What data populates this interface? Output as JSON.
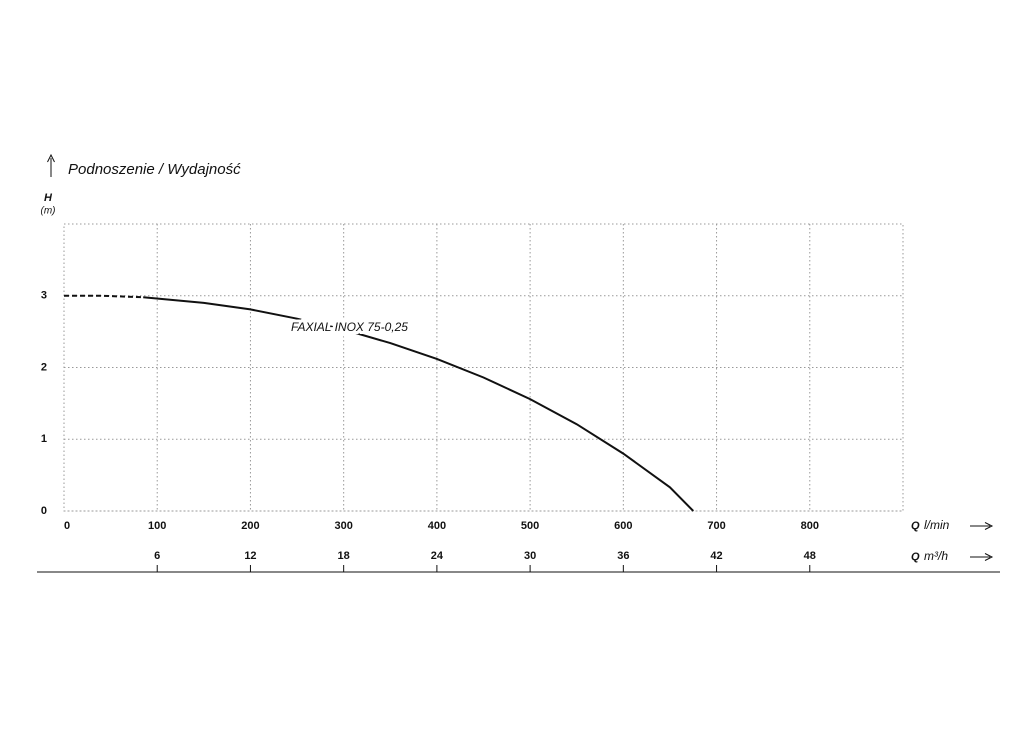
{
  "chart_data": {
    "type": "line",
    "title": "Podnoszenie / Wydajność",
    "y_label": "H",
    "y_unit": "(m)",
    "x_label": {
      "symbol": "Q",
      "unit": "l/min"
    },
    "x2_label": {
      "symbol": "Q",
      "unit": "m³/h"
    },
    "annotation": "FAXIAL INOX 75-0,25",
    "xlim": [
      0,
      900
    ],
    "xticks": [
      0,
      100,
      200,
      300,
      400,
      500,
      600,
      700,
      800
    ],
    "x2lim": [
      0,
      54
    ],
    "x2ticks": [
      6,
      12,
      18,
      24,
      30,
      36,
      42,
      48
    ],
    "ylim": [
      0,
      4
    ],
    "yticks": [
      0,
      1,
      2,
      3
    ],
    "grid": true,
    "color": "#111111",
    "segments": [
      {
        "style": "dashed",
        "x": [
          0,
          40,
          85
        ],
        "values": [
          3.0,
          3.0,
          2.98
        ]
      },
      {
        "style": "solid",
        "x": [
          85,
          150,
          200,
          250,
          300,
          350,
          400,
          450,
          500,
          550,
          600,
          650,
          675
        ],
        "values": [
          2.98,
          2.9,
          2.81,
          2.68,
          2.53,
          2.34,
          2.12,
          1.86,
          1.56,
          1.21,
          0.8,
          0.33,
          0
        ]
      }
    ]
  }
}
